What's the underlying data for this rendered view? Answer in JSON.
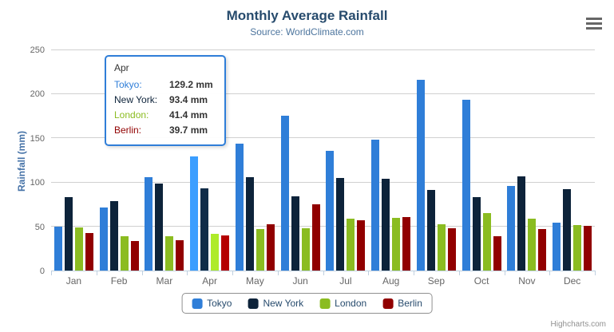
{
  "chart_data": {
    "type": "bar",
    "title": "Monthly Average Rainfall",
    "subtitle": "Source: WorldClimate.com",
    "xlabel": "",
    "ylabel": "Rainfall (mm)",
    "ylim": [
      0,
      250
    ],
    "ytick_interval": 50,
    "grid": true,
    "legend_position": "bottom",
    "categories": [
      "Jan",
      "Feb",
      "Mar",
      "Apr",
      "May",
      "Jun",
      "Jul",
      "Aug",
      "Sep",
      "Oct",
      "Nov",
      "Dec"
    ],
    "series": [
      {
        "name": "Tokyo",
        "color": "#2f7ed8",
        "values": [
          49.9,
          71.5,
          106.4,
          129.2,
          144.0,
          176.0,
          135.6,
          148.5,
          216.4,
          194.1,
          95.6,
          54.4
        ]
      },
      {
        "name": "New York",
        "color": "#0d233a",
        "values": [
          83.6,
          78.8,
          98.5,
          93.4,
          106.0,
          84.5,
          105.0,
          104.3,
          91.2,
          83.5,
          106.6,
          92.3
        ]
      },
      {
        "name": "London",
        "color": "#8bbc21",
        "values": [
          48.9,
          38.8,
          39.3,
          41.4,
          47.0,
          48.3,
          59.0,
          59.6,
          52.4,
          65.2,
          59.3,
          51.2
        ]
      },
      {
        "name": "Berlin",
        "color": "#910000",
        "values": [
          42.4,
          33.2,
          34.5,
          39.7,
          52.6,
          75.5,
          57.4,
          60.4,
          47.6,
          39.1,
          46.8,
          51.1
        ]
      }
    ]
  },
  "tooltip": {
    "hover_category": "Apr",
    "header": "Apr",
    "rows": [
      {
        "label": "Tokyo:",
        "value": "129.2 mm"
      },
      {
        "label": "New York:",
        "value": "93.4 mm"
      },
      {
        "label": "London:",
        "value": "41.4 mm"
      },
      {
        "label": "Berlin:",
        "value": "39.7 mm"
      }
    ]
  },
  "colors": {
    "title": "#274b6d",
    "subtitle": "#4d759e",
    "axis_title": "#4572a7",
    "axis_labels": "#666666",
    "gridline": "#d0d0d0",
    "axis_line": "#c0d0e0",
    "legend_border": "#909090",
    "tooltip_border": "#2f7ed8",
    "credits": "#909090"
  },
  "credits": {
    "label": "Highcharts.com"
  }
}
